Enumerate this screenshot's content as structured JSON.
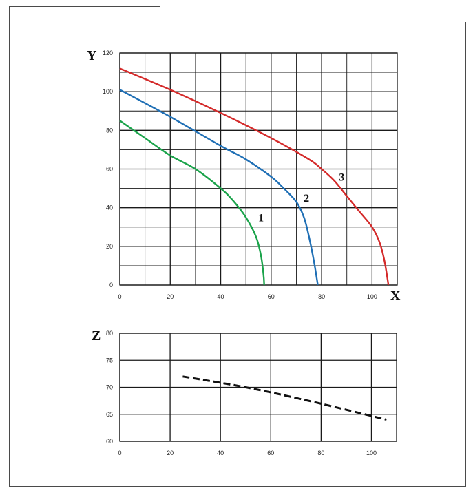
{
  "chart_data": [
    {
      "type": "line",
      "xlabel": "X",
      "ylabel": "Y",
      "xlim": [
        0,
        110
      ],
      "ylim": [
        0,
        120
      ],
      "xticks": [
        0,
        20,
        40,
        60,
        80,
        100
      ],
      "yticks": [
        0,
        20,
        40,
        60,
        80,
        100,
        120
      ],
      "grid": true,
      "series": [
        {
          "label": "1",
          "color": "#1aa34a",
          "x": [
            0,
            10,
            20,
            30,
            40,
            45,
            50,
            54,
            56,
            57,
            57.2,
            57.3
          ],
          "y": [
            85,
            76,
            67,
            60,
            50,
            43.5,
            35,
            25,
            15,
            5,
            1,
            0
          ]
        },
        {
          "label": "2",
          "color": "#1f6fb5",
          "x": [
            0,
            20,
            40,
            50,
            60,
            65,
            70,
            73,
            75,
            77,
            78.5
          ],
          "y": [
            101,
            87,
            72,
            65,
            56,
            50,
            43,
            35,
            25,
            12,
            0
          ]
        },
        {
          "label": "3",
          "color": "#d42a2a",
          "x": [
            0,
            20,
            40,
            60,
            75,
            80,
            85,
            90,
            95,
            100,
            103,
            105,
            106.5
          ],
          "y": [
            112,
            101,
            89,
            76,
            65,
            60,
            54,
            46,
            38,
            30,
            22,
            12,
            0
          ]
        }
      ],
      "annotations": [
        {
          "text": "1",
          "x": 56,
          "y": 33
        },
        {
          "text": "2",
          "x": 74,
          "y": 43
        },
        {
          "text": "3",
          "x": 88,
          "y": 54
        }
      ]
    },
    {
      "type": "line",
      "xlabel": "",
      "ylabel": "Z",
      "xlim": [
        0,
        110
      ],
      "ylim": [
        60,
        80
      ],
      "xticks": [
        0,
        20,
        40,
        60,
        80,
        100
      ],
      "yticks": [
        60,
        65,
        70,
        75,
        80
      ],
      "grid": true,
      "series": [
        {
          "label": "",
          "color": "#111111",
          "style": "dashed",
          "x": [
            25,
            50,
            75,
            100,
            106
          ],
          "y": [
            72,
            70,
            67.5,
            64.7,
            64
          ]
        }
      ]
    }
  ]
}
